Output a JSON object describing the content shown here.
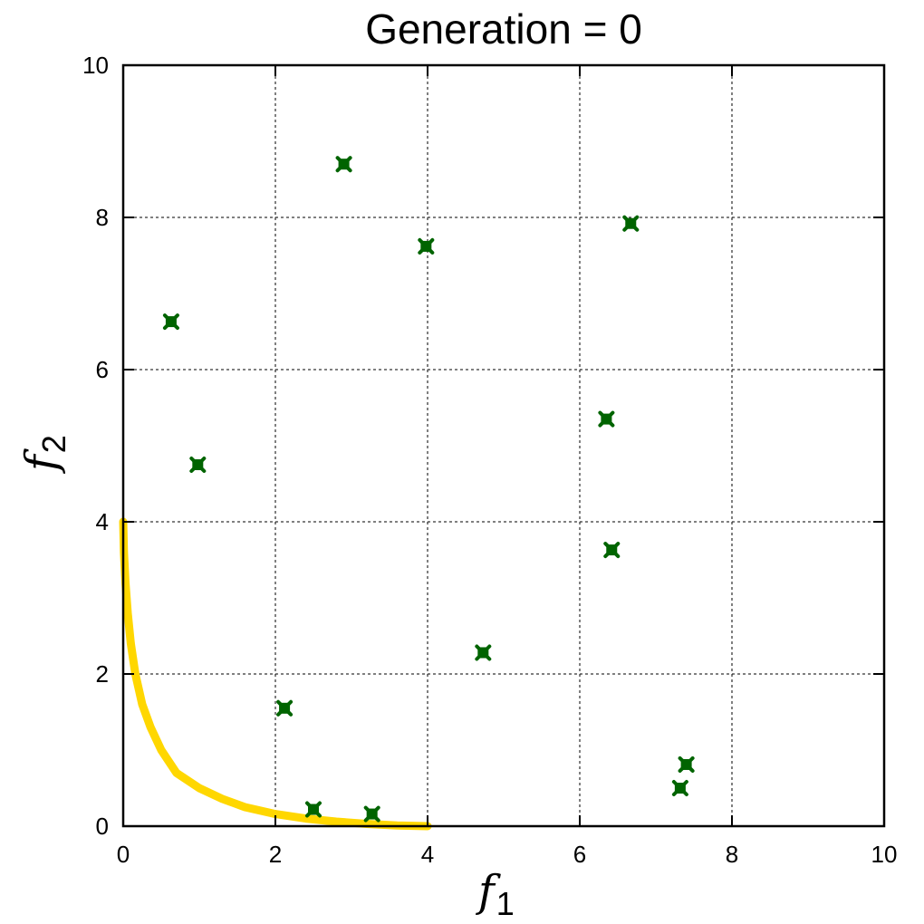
{
  "chart_data": {
    "type": "scatter",
    "title": "Generation = 0",
    "xlabel": {
      "base": "f",
      "sub": "1"
    },
    "ylabel": {
      "base": "f",
      "sub": "2"
    },
    "xlim": [
      0,
      10
    ],
    "ylim": [
      0,
      10
    ],
    "xticks": [
      "0",
      "2",
      "4",
      "6",
      "8",
      "10"
    ],
    "yticks": [
      "0",
      "2",
      "4",
      "6",
      "8",
      "10"
    ],
    "grid": true,
    "series": [
      {
        "kind": "points",
        "color": "#006400",
        "x": [
          0.63,
          0.98,
          2.12,
          2.5,
          2.9,
          3.27,
          3.98,
          4.73,
          6.35,
          6.42,
          6.67,
          7.32,
          7.4
        ],
        "y": [
          6.63,
          4.75,
          1.55,
          0.22,
          8.7,
          0.16,
          7.62,
          2.28,
          5.35,
          3.63,
          7.92,
          0.5,
          0.81
        ]
      },
      {
        "kind": "curve",
        "color": "#FFD700",
        "x": [
          0,
          0.01,
          0.03,
          0.06,
          0.1,
          0.16,
          0.25,
          0.36,
          0.5,
          0.7,
          1.0,
          1.3,
          1.6,
          2.0,
          2.4,
          2.8,
          3.2,
          3.6,
          4.0
        ],
        "y": [
          4.0,
          3.6,
          3.2,
          2.8,
          2.4,
          2.0,
          1.6,
          1.3,
          1.0,
          0.7,
          0.5,
          0.36,
          0.25,
          0.16,
          0.1,
          0.06,
          0.03,
          0.01,
          0
        ]
      }
    ]
  }
}
